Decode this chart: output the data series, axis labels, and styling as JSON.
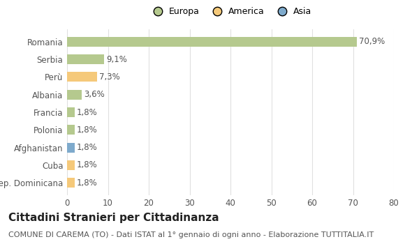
{
  "categories": [
    "Romania",
    "Serbia",
    "Perù",
    "Albania",
    "Francia",
    "Polonia",
    "Afghanistan",
    "Cuba",
    "Rep. Dominicana"
  ],
  "values": [
    70.9,
    9.1,
    7.3,
    3.6,
    1.8,
    1.8,
    1.8,
    1.8,
    1.8
  ],
  "labels": [
    "70,9%",
    "9,1%",
    "7,3%",
    "3,6%",
    "1,8%",
    "1,8%",
    "1,8%",
    "1,8%",
    "1,8%"
  ],
  "colors": [
    "#b5c98e",
    "#b5c98e",
    "#f5c97a",
    "#b5c98e",
    "#b5c98e",
    "#b5c98e",
    "#7eaacc",
    "#f5c97a",
    "#f5c97a"
  ],
  "legend": [
    {
      "label": "Europa",
      "color": "#b5c98e"
    },
    {
      "label": "America",
      "color": "#f5c97a"
    },
    {
      "label": "Asia",
      "color": "#7eaacc"
    }
  ],
  "title": "Cittadini Stranieri per Cittadinanza",
  "subtitle": "COMUNE DI CAREMA (TO) - Dati ISTAT al 1° gennaio di ogni anno - Elaborazione TUTTITALIA.IT",
  "xlim": [
    0,
    80
  ],
  "xticks": [
    0,
    10,
    20,
    30,
    40,
    50,
    60,
    70,
    80
  ],
  "background_color": "#ffffff",
  "grid_color": "#e0e0e0",
  "bar_height": 0.55,
  "title_fontsize": 11,
  "subtitle_fontsize": 8,
  "tick_fontsize": 8.5,
  "label_fontsize": 8.5
}
